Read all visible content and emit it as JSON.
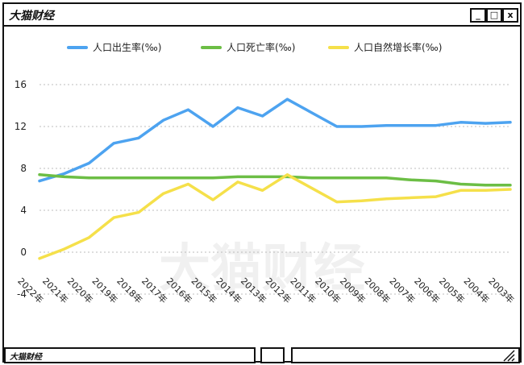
{
  "window": {
    "title": "大猫财经",
    "controls": [
      "_",
      "□",
      "x"
    ],
    "status_text": "大猫财经"
  },
  "watermark": "大猫财经",
  "chart_data": {
    "type": "line",
    "title": "",
    "xlabel": "",
    "ylabel": "",
    "ylim": [
      -4,
      16
    ],
    "yticks": [
      16,
      12,
      8,
      4,
      0,
      -4
    ],
    "grid": true,
    "legend_position": "top",
    "categories": [
      "2022年",
      "2021年",
      "2020年",
      "2019年",
      "2018年",
      "2017年",
      "2016年",
      "2015年",
      "2014年",
      "2013年",
      "2012年",
      "2011年",
      "2010年",
      "2009年",
      "2008年",
      "2007年",
      "2006年",
      "2005年",
      "2004年",
      "2003年"
    ],
    "series": [
      {
        "name": "人口出生率(‰)",
        "color": "#4da3f0",
        "values": [
          6.8,
          7.5,
          8.5,
          10.4,
          10.9,
          12.6,
          13.6,
          12.0,
          13.8,
          13.0,
          14.6,
          13.3,
          12.0,
          12.0,
          12.1,
          12.1,
          12.1,
          12.4,
          12.3,
          12.4
        ]
      },
      {
        "name": "人口死亡率(‰)",
        "color": "#6cbe45",
        "values": [
          7.4,
          7.2,
          7.1,
          7.1,
          7.1,
          7.1,
          7.1,
          7.1,
          7.2,
          7.2,
          7.2,
          7.1,
          7.1,
          7.1,
          7.1,
          6.9,
          6.8,
          6.5,
          6.4,
          6.4
        ]
      },
      {
        "name": "人口自然增长率(‰)",
        "color": "#f5e04a",
        "values": [
          -0.6,
          0.3,
          1.4,
          3.3,
          3.8,
          5.6,
          6.5,
          5.0,
          6.7,
          5.9,
          7.4,
          6.1,
          4.8,
          4.9,
          5.1,
          5.2,
          5.3,
          5.9,
          5.9,
          6.0
        ]
      }
    ]
  }
}
